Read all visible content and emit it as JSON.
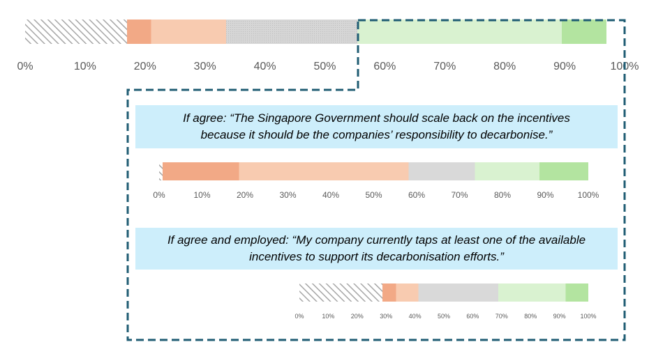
{
  "colors": {
    "strongly_agree_hatch": "#a6a6a6",
    "agree_strong": "#f2a986",
    "agree": "#f8cbb0",
    "neutral": "#d9d9d9",
    "disagree": "#d9f2d0",
    "strongly_disagree": "#b3e4a0",
    "callout_bg": "#cdeefb",
    "dashed_outline": "#1f5c73",
    "axis_text": "#595959"
  },
  "callouts": {
    "first": {
      "line1": "If agree: “The Singapore Government should scale back on the incentives",
      "line2": "because it should be the companies’ responsibility to decarbonise.”"
    },
    "second": {
      "line1": "If agree and employed: “My company currently taps at least one of the available",
      "line2": "incentives to support its decarbonisation efforts.”"
    }
  },
  "chart_data": [
    {
      "type": "bar",
      "orientation": "horizontal-stacked-100",
      "xlim": [
        0,
        100
      ],
      "ticks": [
        "0%",
        "10%",
        "20%",
        "30%",
        "40%",
        "50%",
        "60%",
        "70%",
        "80%",
        "90%",
        "100%"
      ],
      "segments": [
        17,
        4,
        12.5,
        22,
        34,
        7.5
      ],
      "styles": [
        "hatch",
        "agree_strong",
        "agree",
        "neutral",
        "disagree",
        "strongly_disagree"
      ]
    },
    {
      "type": "bar",
      "orientation": "horizontal-stacked-100",
      "xlim": [
        0,
        100
      ],
      "ticks": [
        "0%",
        "10%",
        "20%",
        "30%",
        "40%",
        "50%",
        "60%",
        "70%",
        "80%",
        "90%",
        "100%"
      ],
      "segments": [
        0.8,
        17.8,
        39.5,
        15.5,
        15,
        11.4
      ],
      "styles": [
        "hatch",
        "agree_strong",
        "agree",
        "neutral",
        "disagree",
        "strongly_disagree"
      ]
    },
    {
      "type": "bar",
      "orientation": "horizontal-stacked-100",
      "xlim": [
        0,
        100
      ],
      "ticks": [
        "0%",
        "10%",
        "20%",
        "30%",
        "40%",
        "50%",
        "60%",
        "70%",
        "80%",
        "90%",
        "100%"
      ],
      "segments": [
        28.8,
        4.7,
        7.7,
        27.6,
        23.4,
        7.8
      ],
      "styles": [
        "hatch",
        "agree_strong",
        "agree",
        "neutral",
        "disagree",
        "strongly_disagree"
      ]
    }
  ]
}
